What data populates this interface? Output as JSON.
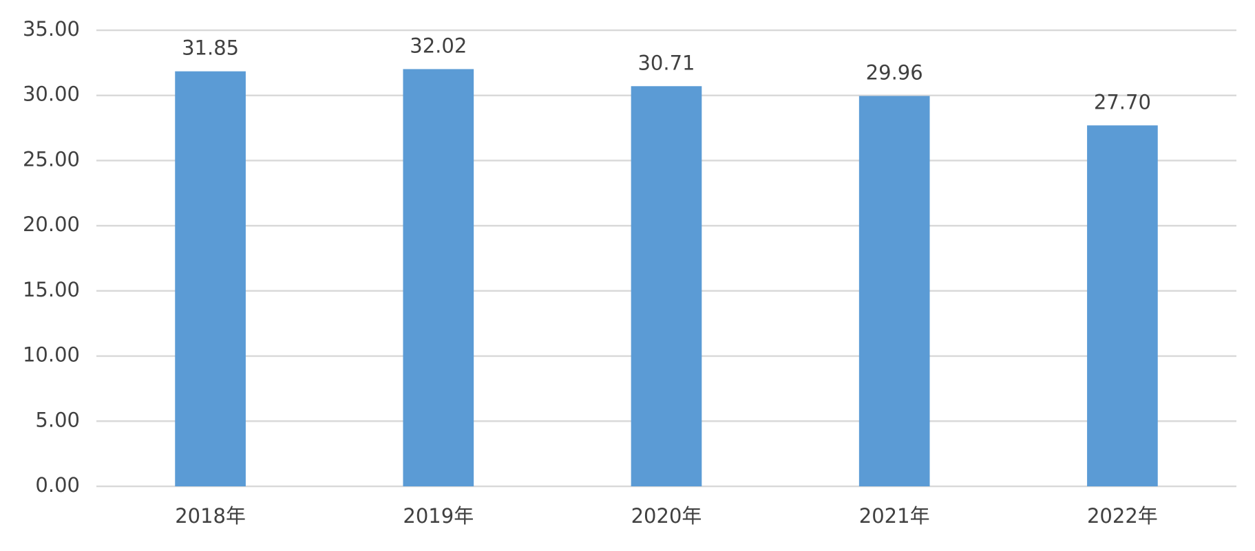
{
  "chart_data": {
    "type": "bar",
    "categories": [
      "2018年",
      "2019年",
      "2020年",
      "2021年",
      "2022年"
    ],
    "values": [
      31.85,
      32.02,
      30.71,
      29.96,
      27.7
    ],
    "value_labels": [
      "31.85",
      "32.02",
      "30.71",
      "29.96",
      "27.70"
    ],
    "color": "#5b9bd5",
    "ylim": [
      0,
      35
    ],
    "yticks": [
      {
        "value": 0,
        "label": "0.00"
      },
      {
        "value": 5,
        "label": "5.00"
      },
      {
        "value": 10,
        "label": "10.00"
      },
      {
        "value": 15,
        "label": "15.00"
      },
      {
        "value": 20,
        "label": "20.00"
      },
      {
        "value": 25,
        "label": "25.00"
      },
      {
        "value": 30,
        "label": "30.00"
      },
      {
        "value": 35,
        "label": "35.00"
      }
    ],
    "grid": true
  }
}
